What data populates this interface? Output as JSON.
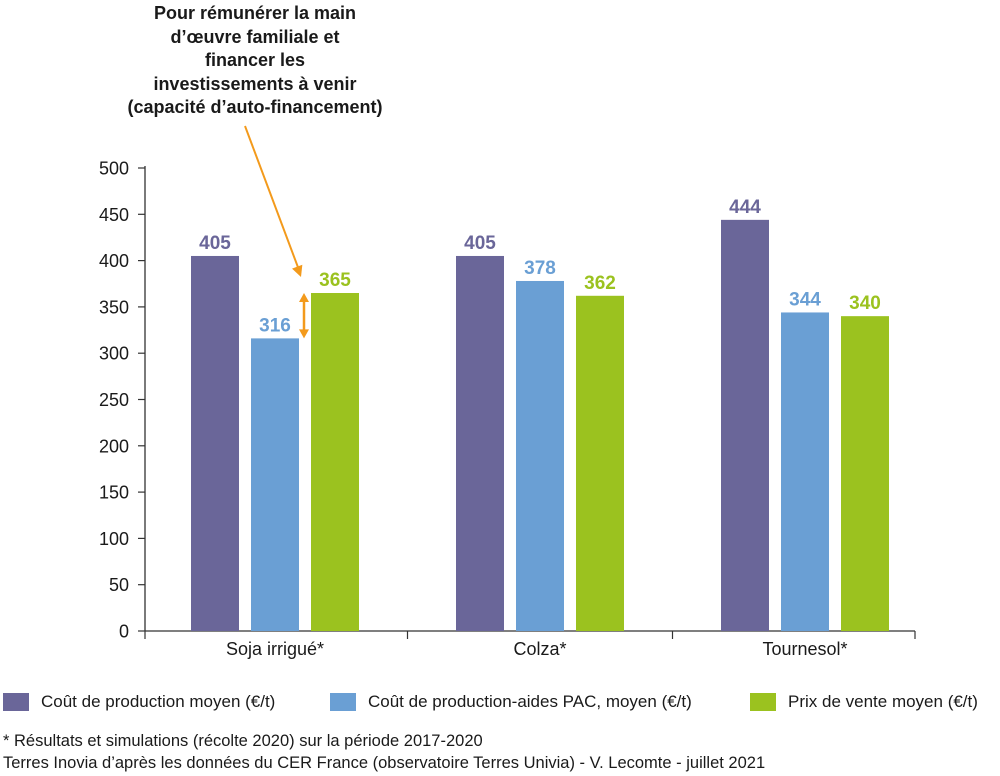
{
  "chart_data": {
    "type": "bar",
    "categories": [
      "Soja irrigué*",
      "Colza*",
      "Tournesol*"
    ],
    "series": [
      {
        "name": "Coût de production moyen (€/t)",
        "values": [
          405,
          405,
          444
        ],
        "color": "#6a6699"
      },
      {
        "name": "Coût de production-aides PAC, moyen (€/t)",
        "values": [
          316,
          378,
          344
        ],
        "color": "#6a9fd4"
      },
      {
        "name": "Prix de vente moyen (€/t)",
        "values": [
          365,
          362,
          340
        ],
        "color": "#9bc21f"
      }
    ],
    "ylim": [
      0,
      500
    ],
    "yticks": [
      0,
      50,
      100,
      150,
      200,
      250,
      300,
      350,
      400,
      450,
      500
    ],
    "grid": false,
    "legend_position": "bottom",
    "annotation": {
      "text": "Pour rémunérer la main\nd’œuvre familiale et\nfinancer les\ninvestissements à venir\n(capacité d’auto-financement)",
      "arrow_color": "#f39a1c",
      "target_category": "Soja irrigué*",
      "range": [
        316,
        365
      ]
    }
  },
  "footnotes": {
    "note": "* Résultats et simulations (récolte 2020) sur la période 2017-2020",
    "source": "Terres Inovia d’après les données du CER France (observatoire Terres Univia) - V. Lecomte - juillet 2021"
  }
}
